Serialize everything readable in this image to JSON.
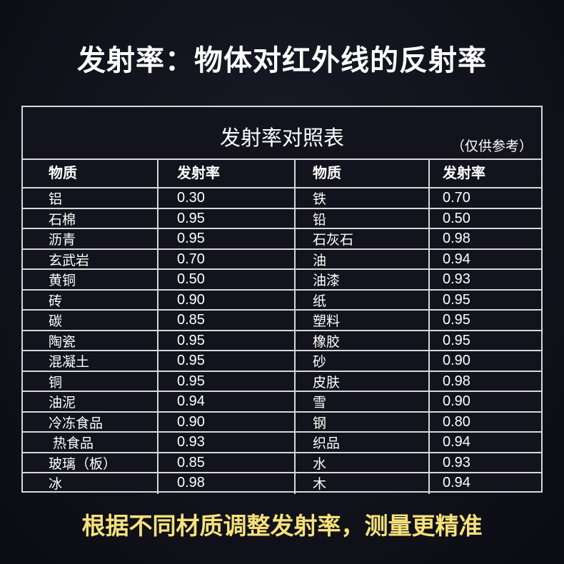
{
  "title": "发射率：物体对红外线的反射率",
  "table": {
    "caption": "发射率对照表",
    "note": "（仅供参考）",
    "headers": [
      "物质",
      "发射率",
      "物质",
      "发射率"
    ],
    "rows": [
      [
        "铝",
        "0.30",
        "铁",
        "0.70"
      ],
      [
        "石棉",
        "0.95",
        "铅",
        "0.50"
      ],
      [
        "沥青",
        "0.95",
        "石灰石",
        "0.98"
      ],
      [
        "玄武岩",
        "0.70",
        "油",
        "0.94"
      ],
      [
        "黄铜",
        "0.50",
        "油漆",
        "0.93"
      ],
      [
        "砖",
        "0.90",
        "纸",
        "0.95"
      ],
      [
        "碳",
        "0.85",
        "塑料",
        "0.95"
      ],
      [
        "陶瓷",
        "0.95",
        "橡胶",
        "0.95"
      ],
      [
        "混凝土",
        "0.95",
        "砂",
        "0.90"
      ],
      [
        "铜",
        "0.95",
        "皮肤",
        "0.98"
      ],
      [
        "油泥",
        "0.94",
        "雪",
        "0.90"
      ],
      [
        "冷冻食品",
        "0.90",
        "钢",
        "0.80"
      ],
      [
        " 热食品",
        "0.93",
        "织品",
        "0.94"
      ],
      [
        "玻璃（板）",
        "0.85",
        "水",
        "0.93"
      ],
      [
        "冰",
        "0.98",
        "木",
        "0.94"
      ]
    ]
  },
  "footer": "根据不同材质调整发射率，测量更精准",
  "colors": {
    "footer": "#f6e27a",
    "background": "#12121c",
    "grid": "#d8d8d8"
  }
}
